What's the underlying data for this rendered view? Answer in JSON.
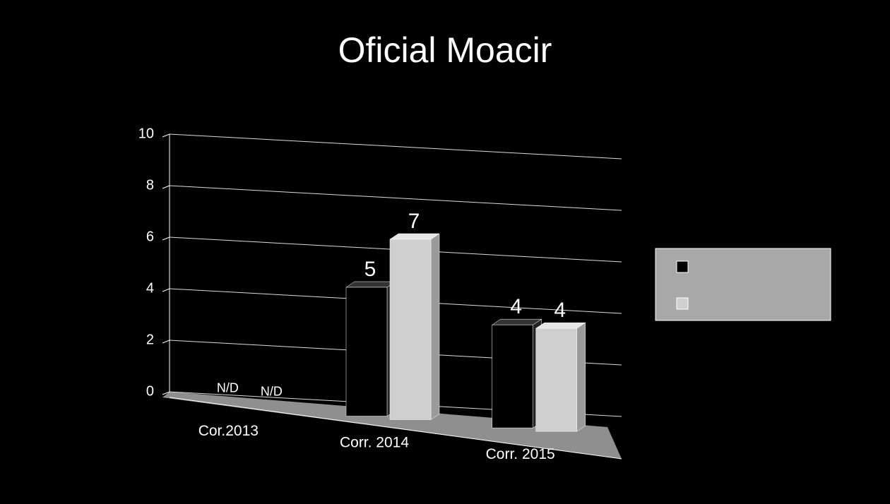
{
  "chart_data": {
    "type": "bar3d",
    "title": "Oficial Moacir",
    "categories": [
      "Cor.2013",
      "Corr. 2014",
      "Corr. 2015"
    ],
    "series": [
      {
        "color": "#000000",
        "values": [
          null,
          5,
          4
        ],
        "value_labels": [
          "N/D",
          "5",
          "4"
        ]
      },
      {
        "color": "#cfcfcf",
        "values": [
          null,
          7,
          4
        ],
        "value_labels": [
          "N/D",
          "7",
          "4"
        ]
      }
    ],
    "ylim": [
      0,
      10
    ],
    "yticks": [
      0,
      2,
      4,
      6,
      8,
      10
    ],
    "grid": true,
    "legend": "right"
  }
}
